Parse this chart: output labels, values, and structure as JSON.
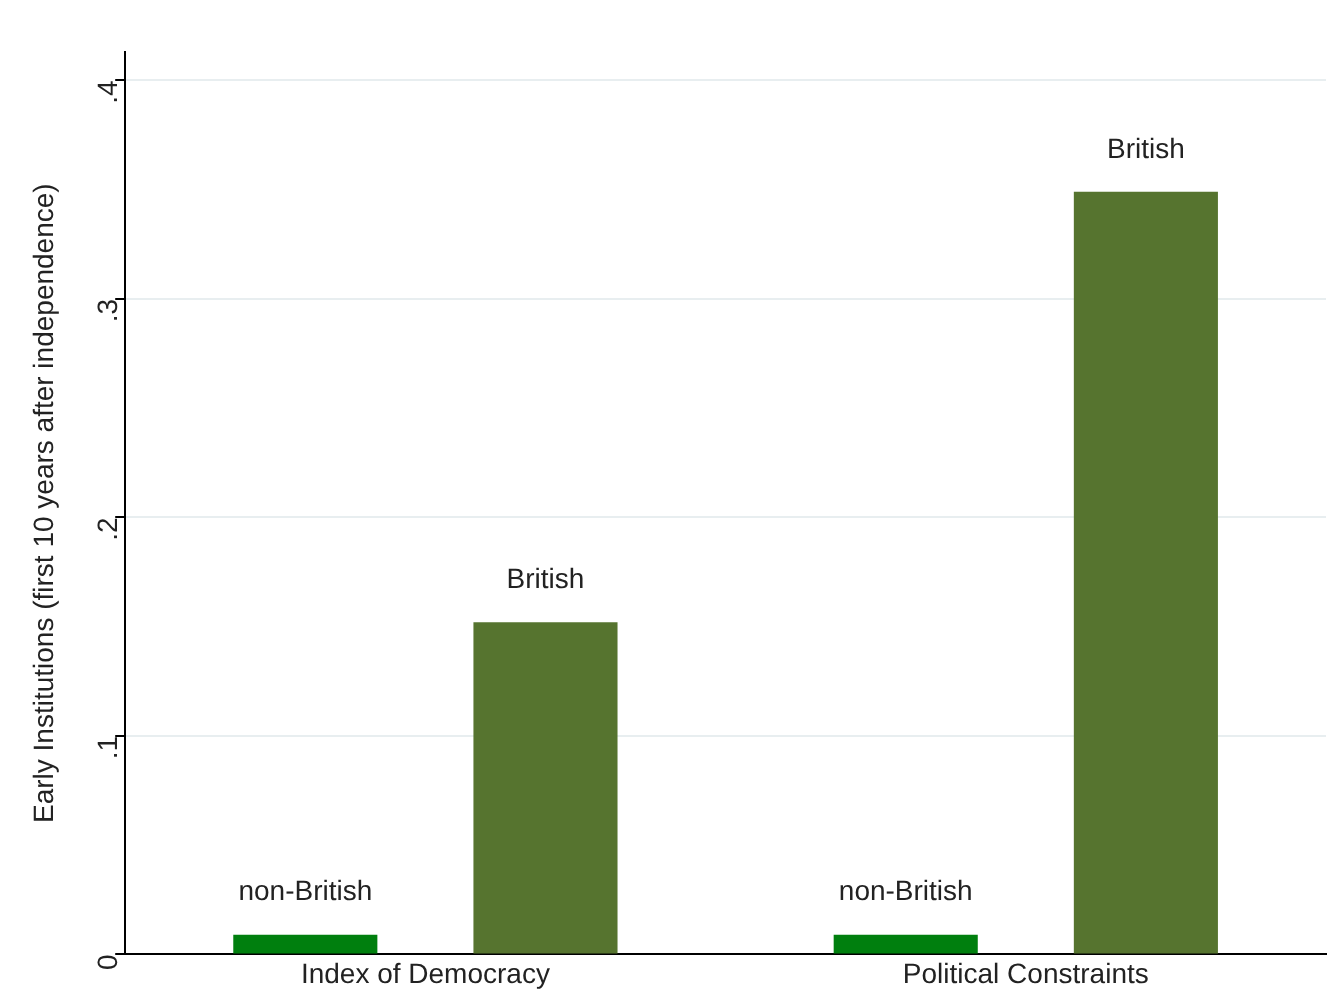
{
  "chart_data": {
    "type": "bar",
    "ylabel": "Early Institutions (first 10 years after independence)",
    "categories": [
      "Index of Democracy",
      "Political Constraints"
    ],
    "series": [
      {
        "name": "non-British",
        "color": "#007f0e",
        "values": [
          0.009,
          0.009
        ]
      },
      {
        "name": "British",
        "color": "#56742f",
        "values": [
          0.152,
          0.349
        ]
      }
    ],
    "ylim": [
      0,
      0.413
    ],
    "yticks": [
      0,
      {
        "value": 0.1,
        "label": ".1"
      },
      {
        "value": 0.2,
        "label": ".2"
      },
      {
        "value": 0.3,
        "label": ".3"
      },
      {
        "value": 0.4,
        "label": ".4"
      }
    ],
    "grid": "y",
    "legend": false
  }
}
